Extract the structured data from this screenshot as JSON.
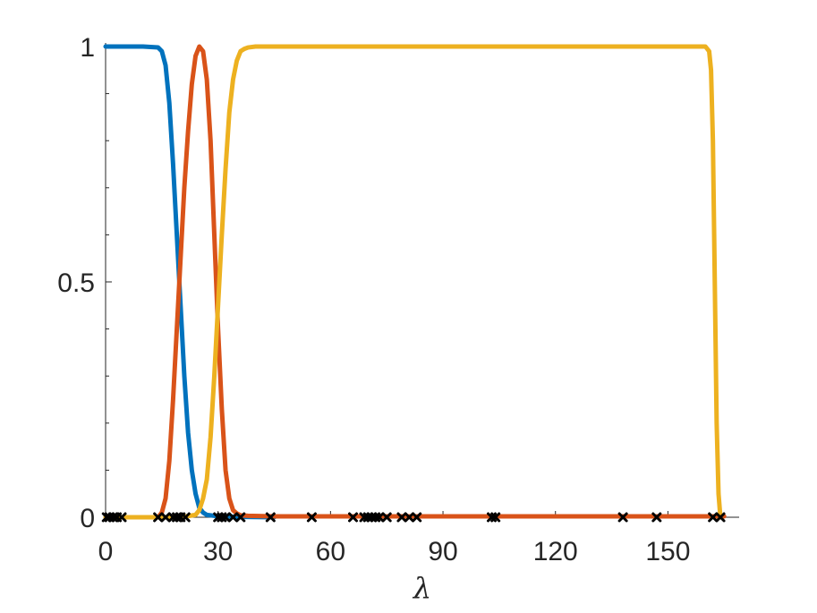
{
  "chart_data": {
    "type": "line",
    "xlabel": "λ",
    "ylabel": "",
    "xlim": [
      0,
      169
    ],
    "ylim": [
      0,
      1
    ],
    "xticks": [
      0,
      30,
      60,
      90,
      120,
      150
    ],
    "xtick_labels": [
      "0",
      "30",
      "60",
      "90",
      "120",
      "150"
    ],
    "yticks": [
      0,
      0.5,
      1
    ],
    "ytick_labels": [
      "0",
      "0.5",
      "1"
    ],
    "grid": false,
    "legend": "none",
    "series": [
      {
        "color": "#0072BD",
        "x": [
          0,
          10,
          14,
          15,
          16,
          17,
          18,
          19,
          20,
          21,
          22,
          23,
          24,
          25,
          26,
          27,
          30,
          35,
          40,
          45
        ],
        "y": [
          1,
          1,
          0.998,
          0.99,
          0.96,
          0.88,
          0.75,
          0.6,
          0.45,
          0.3,
          0.18,
          0.1,
          0.05,
          0.02,
          0.01,
          0.005,
          0.002,
          0.001,
          0.0005,
          0
        ]
      },
      {
        "color": "#D95319",
        "x": [
          0,
          14,
          15,
          16,
          17,
          18,
          19,
          20,
          21,
          22,
          23,
          24,
          25,
          26,
          27,
          28,
          29,
          30,
          31,
          32,
          33,
          34,
          35,
          36,
          38,
          45,
          60,
          100,
          165
        ],
        "y": [
          0,
          0,
          0.01,
          0.04,
          0.12,
          0.25,
          0.4,
          0.55,
          0.7,
          0.82,
          0.92,
          0.98,
          1.0,
          0.99,
          0.93,
          0.8,
          0.6,
          0.4,
          0.23,
          0.1,
          0.04,
          0.015,
          0.008,
          0.004,
          0.003,
          0.002,
          0.002,
          0.002,
          0.002
        ]
      },
      {
        "color": "#EDB120",
        "x": [
          0,
          20,
          24,
          25,
          26,
          27,
          28,
          29,
          30,
          31,
          32,
          33,
          34,
          35,
          36,
          37,
          38,
          40,
          45,
          60,
          100,
          160,
          161,
          161.5,
          162,
          162.5,
          163,
          163.5,
          164
        ],
        "y": [
          0,
          0,
          0.005,
          0.015,
          0.04,
          0.08,
          0.17,
          0.3,
          0.45,
          0.6,
          0.74,
          0.86,
          0.93,
          0.97,
          0.99,
          0.995,
          0.998,
          1,
          1,
          1,
          1,
          1,
          0.99,
          0.95,
          0.8,
          0.5,
          0.2,
          0.05,
          0
        ]
      }
    ],
    "markers": {
      "color": "#000000",
      "y": 0,
      "x": [
        0.3,
        1,
        2,
        3,
        4.3,
        14,
        16,
        18,
        19,
        20,
        21.3,
        30,
        31,
        32,
        34,
        36,
        44,
        55,
        66,
        69,
        70,
        71,
        72,
        73,
        75,
        79,
        81,
        83,
        103,
        104,
        138,
        147,
        162,
        164
      ]
    }
  }
}
